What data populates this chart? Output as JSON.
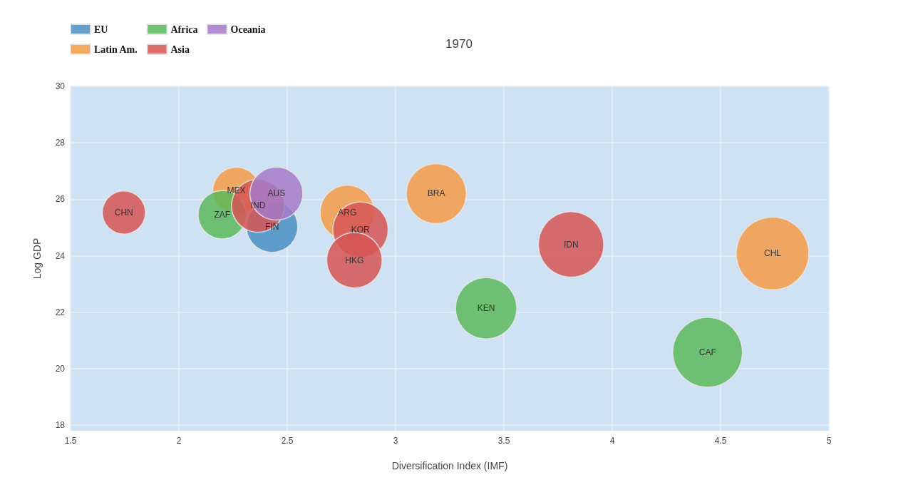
{
  "chart_data": {
    "type": "bubble",
    "title": "1970",
    "xlabel": "Diversification Index (IMF)",
    "ylabel": "Log GDP",
    "xlim": [
      1.5,
      5
    ],
    "xticks": [
      1.5,
      2,
      2.5,
      3,
      3.5,
      4,
      4.5,
      5
    ],
    "ylim": [
      17.8,
      30
    ],
    "yticks": [
      18,
      20,
      22,
      24,
      26,
      28,
      30
    ],
    "grid": true,
    "legend": "top left",
    "series": [
      {
        "name": "EU",
        "color": "#4a8fc4",
        "x": [
          2.43
        ],
        "values": [
          25.03
        ],
        "sizes": [
          0.5
        ]
      },
      {
        "name": "Latin Am.",
        "color": "#f39b45",
        "x": [
          2.265,
          2.777,
          3.188,
          4.74
        ],
        "values": [
          26.3,
          25.53,
          26.2,
          24.08
        ],
        "sizes": [
          0.42,
          0.56,
          0.68,
          1
        ]
      },
      {
        "name": "Africa",
        "color": "#5cb85c",
        "x": [
          2.2,
          3.418,
          4.44
        ],
        "values": [
          25.45,
          22.14,
          20.58
        ],
        "sizes": [
          0.44,
          0.71,
          0.92
        ]
      },
      {
        "name": "Asia",
        "color": "#d65555",
        "x": [
          1.746,
          2.365,
          2.838,
          2.81,
          3.81
        ],
        "values": [
          25.53,
          25.77,
          24.92,
          23.84,
          24.4
        ],
        "sizes": [
          0.35,
          0.53,
          0.58,
          0.58,
          0.81
        ]
      },
      {
        "name": "Oceania",
        "color": "#a57ac8",
        "x": [
          2.45
        ],
        "values": [
          26.2
        ],
        "sizes": [
          0.53
        ]
      }
    ],
    "annotations": [
      {
        "text": "FIN",
        "x": 2.43,
        "y": 25.03
      },
      {
        "text": "MEX",
        "x": 2.265,
        "y": 26.3
      },
      {
        "text": "ARG",
        "x": 2.777,
        "y": 25.53
      },
      {
        "text": "BRA",
        "x": 3.188,
        "y": 26.2
      },
      {
        "text": "CHL",
        "x": 4.74,
        "y": 24.08
      },
      {
        "text": "ZAF",
        "x": 2.2,
        "y": 25.45
      },
      {
        "text": "KEN",
        "x": 3.418,
        "y": 22.14
      },
      {
        "text": "CAF",
        "x": 4.44,
        "y": 20.58
      },
      {
        "text": "CHN",
        "x": 1.746,
        "y": 25.53
      },
      {
        "text": "IND",
        "x": 2.365,
        "y": 25.77
      },
      {
        "text": "KOR",
        "x": 2.838,
        "y": 24.92
      },
      {
        "text": "HKG",
        "x": 2.81,
        "y": 23.84
      },
      {
        "text": "IDN",
        "x": 3.81,
        "y": 24.4
      },
      {
        "text": "AUS",
        "x": 2.45,
        "y": 26.2
      }
    ]
  }
}
